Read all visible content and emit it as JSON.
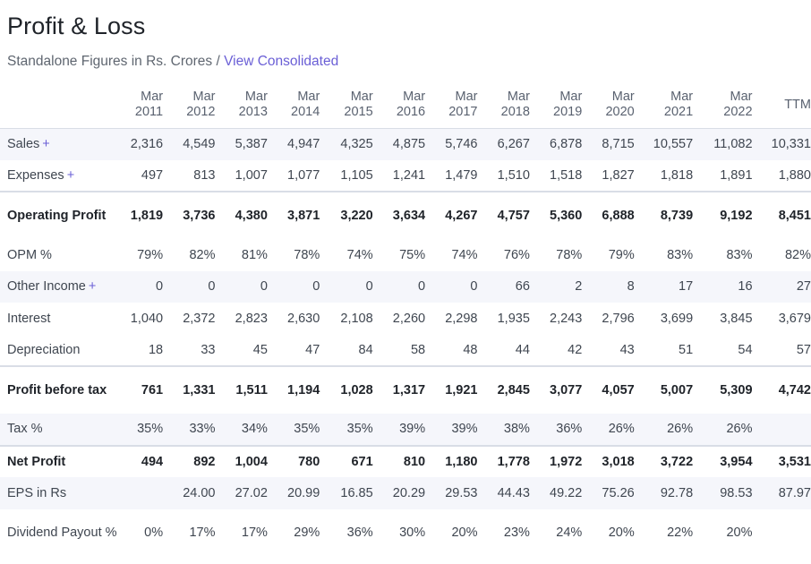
{
  "header": {
    "title": "Profit & Loss",
    "subtitle_prefix": "Standalone Figures in Rs. Crores /",
    "subtitle_link": "View Consolidated"
  },
  "table": {
    "columns": [
      {
        "line1": "Mar",
        "line2": "2011"
      },
      {
        "line1": "Mar",
        "line2": "2012"
      },
      {
        "line1": "Mar",
        "line2": "2013"
      },
      {
        "line1": "Mar",
        "line2": "2014"
      },
      {
        "line1": "Mar",
        "line2": "2015"
      },
      {
        "line1": "Mar",
        "line2": "2016"
      },
      {
        "line1": "Mar",
        "line2": "2017"
      },
      {
        "line1": "Mar",
        "line2": "2018"
      },
      {
        "line1": "Mar",
        "line2": "2019"
      },
      {
        "line1": "Mar",
        "line2": "2020"
      },
      {
        "line1": "Mar",
        "line2": "2021"
      },
      {
        "line1": "Mar",
        "line2": "2022"
      },
      {
        "line1": "",
        "line2": "TTM"
      }
    ],
    "rows": [
      {
        "label": "Sales",
        "plus": "+",
        "values": [
          "2,316",
          "4,549",
          "5,387",
          "4,947",
          "4,325",
          "4,875",
          "5,746",
          "6,267",
          "6,878",
          "8,715",
          "10,557",
          "11,082",
          "10,331"
        ]
      },
      {
        "label": "Expenses",
        "plus": "+",
        "values": [
          "497",
          "813",
          "1,007",
          "1,077",
          "1,105",
          "1,241",
          "1,479",
          "1,510",
          "1,518",
          "1,827",
          "1,818",
          "1,891",
          "1,880"
        ]
      },
      {
        "label": "Operating Profit",
        "plus": "",
        "values": [
          "1,819",
          "3,736",
          "4,380",
          "3,871",
          "3,220",
          "3,634",
          "4,267",
          "4,757",
          "5,360",
          "6,888",
          "8,739",
          "9,192",
          "8,451"
        ]
      },
      {
        "label": "OPM %",
        "plus": "",
        "values": [
          "79%",
          "82%",
          "81%",
          "78%",
          "74%",
          "75%",
          "74%",
          "76%",
          "78%",
          "79%",
          "83%",
          "83%",
          "82%"
        ]
      },
      {
        "label": "Other Income",
        "plus": "+",
        "values": [
          "0",
          "0",
          "0",
          "0",
          "0",
          "0",
          "0",
          "66",
          "2",
          "8",
          "17",
          "16",
          "27"
        ]
      },
      {
        "label": "Interest",
        "plus": "",
        "values": [
          "1,040",
          "2,372",
          "2,823",
          "2,630",
          "2,108",
          "2,260",
          "2,298",
          "1,935",
          "2,243",
          "2,796",
          "3,699",
          "3,845",
          "3,679"
        ]
      },
      {
        "label": "Depreciation",
        "plus": "",
        "values": [
          "18",
          "33",
          "45",
          "47",
          "84",
          "58",
          "48",
          "44",
          "42",
          "43",
          "51",
          "54",
          "57"
        ]
      },
      {
        "label": "Profit before tax",
        "plus": "",
        "values": [
          "761",
          "1,331",
          "1,511",
          "1,194",
          "1,028",
          "1,317",
          "1,921",
          "2,845",
          "3,077",
          "4,057",
          "5,007",
          "5,309",
          "4,742"
        ]
      },
      {
        "label": "Tax %",
        "plus": "",
        "values": [
          "35%",
          "33%",
          "34%",
          "35%",
          "35%",
          "39%",
          "39%",
          "38%",
          "36%",
          "26%",
          "26%",
          "26%",
          ""
        ]
      },
      {
        "label": "Net Profit",
        "plus": "",
        "values": [
          "494",
          "892",
          "1,004",
          "780",
          "671",
          "810",
          "1,180",
          "1,778",
          "1,972",
          "3,018",
          "3,722",
          "3,954",
          "3,531"
        ]
      },
      {
        "label": "EPS in Rs",
        "plus": "",
        "values": [
          "",
          "24.00",
          "27.02",
          "20.99",
          "16.85",
          "20.29",
          "29.53",
          "44.43",
          "49.22",
          "75.26",
          "92.78",
          "98.53",
          "87.97"
        ]
      },
      {
        "label": "Dividend Payout %",
        "plus": "",
        "values": [
          "0%",
          "17%",
          "17%",
          "29%",
          "36%",
          "30%",
          "20%",
          "23%",
          "24%",
          "20%",
          "22%",
          "20%",
          ""
        ]
      }
    ]
  },
  "colors": {
    "accent": "#6a5fd6",
    "shade": "#f5f6fb",
    "border": "#d9dde6"
  }
}
